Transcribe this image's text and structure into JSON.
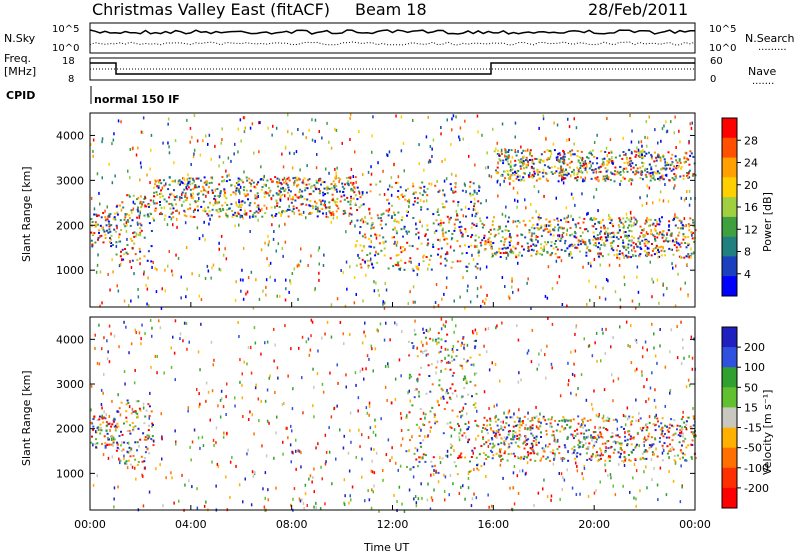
{
  "header": {
    "station": "Christmas Valley East (fitACF)",
    "beam": "Beam 18",
    "date": "28/Feb/2011"
  },
  "panels": {
    "nsky": {
      "left_label": "N.Sky",
      "right_label": "N.Search",
      "right_legend": ".........",
      "left_ticks": [
        "10^5",
        "10^0"
      ],
      "right_ticks": [
        "10^5",
        "10^0"
      ]
    },
    "freq": {
      "left_label_1": "Freq.",
      "left_label_2": "[MHz]",
      "right_label": "Nave",
      "right_legend": ".......",
      "left_ticks": [
        "18",
        "8"
      ],
      "right_ticks": [
        "60",
        "0"
      ]
    },
    "cpid": {
      "label": "CPID",
      "value": "normal 150 IF"
    }
  },
  "axes": {
    "ylabel": "Slant Range [km]",
    "xlabel": "Time UT",
    "yticks": [
      "4000",
      "3000",
      "2000",
      "1000"
    ],
    "xticks": [
      "00:00",
      "04:00",
      "08:00",
      "12:00",
      "16:00",
      "20:00",
      "00:00"
    ]
  },
  "colorbars": {
    "power": {
      "label": "Power [dB]",
      "ticks": [
        "28",
        "24",
        "20",
        "16",
        "12",
        "8",
        "4"
      ],
      "colors": [
        "#ff0000",
        "#ff5000",
        "#ffa000",
        "#ffd000",
        "#a0d040",
        "#40a040",
        "#208080",
        "#1a40c0",
        "#0000ff"
      ]
    },
    "velocity": {
      "label": "Velocity [m s⁻¹]",
      "ticks": [
        "200",
        "100",
        "50",
        "15",
        "-15",
        "-50",
        "-100",
        "-200"
      ],
      "colors": [
        "#2020c0",
        "#3050e0",
        "#30a030",
        "#60c030",
        "#c8c8c0",
        "#ffb000",
        "#ff7000",
        "#ff3000",
        "#ff0000"
      ]
    }
  },
  "chart_data": [
    {
      "type": "heatmap",
      "name": "power",
      "x_range": [
        0,
        24
      ],
      "ylim": [
        180,
        4500
      ],
      "clim": [
        0,
        30
      ],
      "bands": [
        {
          "t0": 0.0,
          "t1": 1.0,
          "r0": 1550,
          "r1": 2300
        },
        {
          "t0": 1.0,
          "t1": 2.5,
          "r0": 1200,
          "r1": 2700
        },
        {
          "t0": 2.5,
          "t1": 10.5,
          "r0": 2200,
          "r1": 3100
        },
        {
          "t0": 10.5,
          "t1": 15.5,
          "r0": 1000,
          "r1": 3000
        },
        {
          "t0": 15.5,
          "t1": 24.0,
          "r0": 1300,
          "r1": 2200
        },
        {
          "t0": 16.0,
          "t1": 24.0,
          "r0": 3000,
          "r1": 3700
        }
      ]
    },
    {
      "type": "heatmap",
      "name": "velocity",
      "x_range": [
        0,
        24
      ],
      "ylim": [
        180,
        4500
      ],
      "clim": [
        -200,
        200
      ],
      "bands": [
        {
          "t0": 0.0,
          "t1": 1.0,
          "r0": 1550,
          "r1": 2300
        },
        {
          "t0": 1.0,
          "t1": 2.5,
          "r0": 1200,
          "r1": 2700
        },
        {
          "t0": 12.5,
          "t1": 15.5,
          "r0": 1000,
          "r1": 4200
        },
        {
          "t0": 15.5,
          "t1": 24.0,
          "r0": 1300,
          "r1": 2300
        }
      ]
    }
  ]
}
